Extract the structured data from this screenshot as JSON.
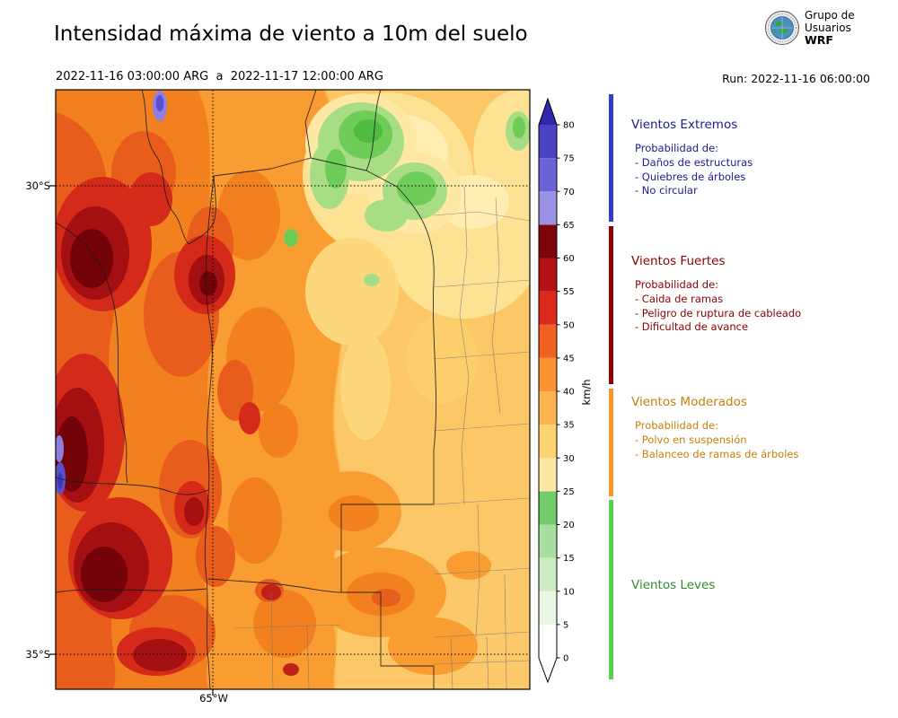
{
  "header": {
    "title": "Intensidad máxima de viento a 10m del suelo",
    "period": "2022-11-16 03:00:00 ARG  a  2022-11-17 12:00:00 ARG",
    "run_label": "Run: 2022-11-16 06:00:00",
    "logo": {
      "line1": "Grupo de",
      "line2": "Usuarios",
      "line3": "WRF"
    }
  },
  "map": {
    "lat_labels": [
      "30°S",
      "35°S"
    ],
    "lon_label": "65°W"
  },
  "colorbar": {
    "unit": "km/h",
    "min": 0,
    "max": 80,
    "ticks": [
      0,
      5,
      10,
      15,
      20,
      25,
      30,
      35,
      40,
      45,
      50,
      55,
      60,
      65,
      70,
      75,
      80
    ],
    "segments": [
      {
        "from": 0,
        "to": 5,
        "color": "#ffffff"
      },
      {
        "from": 5,
        "to": 10,
        "color": "#e9f7e4"
      },
      {
        "from": 10,
        "to": 15,
        "color": "#cdecc3"
      },
      {
        "from": 15,
        "to": 20,
        "color": "#a8dfa0"
      },
      {
        "from": 20,
        "to": 25,
        "color": "#73cc6b"
      },
      {
        "from": 25,
        "to": 30,
        "color": "#ffe8a3"
      },
      {
        "from": 30,
        "to": 35,
        "color": "#fed473"
      },
      {
        "from": 35,
        "to": 40,
        "color": "#fdb44e"
      },
      {
        "from": 40,
        "to": 45,
        "color": "#fb9330"
      },
      {
        "from": 45,
        "to": 50,
        "color": "#f26122"
      },
      {
        "from": 50,
        "to": 55,
        "color": "#dc2a1d"
      },
      {
        "from": 55,
        "to": 60,
        "color": "#b41217"
      },
      {
        "from": 60,
        "to": 65,
        "color": "#7e040c"
      },
      {
        "from": 65,
        "to": 70,
        "color": "#9b92e6"
      },
      {
        "from": 70,
        "to": 75,
        "color": "#6a63d8"
      },
      {
        "from": 75,
        "to": 80,
        "color": "#4a43c4"
      }
    ],
    "over_color": "#2d27ae",
    "under_color": "#ffffff"
  },
  "legend": {
    "categories": [
      {
        "name": "Vientos Extremos",
        "text_color": "#1b1b8f",
        "bar_color": "#3539cf",
        "prob_title": "Probabilidad de:",
        "items": [
          "- Daños de estructuras",
          "- Quiebres de árboles",
          "- No circular"
        ]
      },
      {
        "name": "Vientos Fuertes",
        "text_color": "#8b0000",
        "bar_color": "#8b0000",
        "prob_title": "Probabilidad de:",
        "items": [
          "- Caida de ramas",
          "- Peligro de ruptura de cableado",
          "- Dificultad de avance"
        ]
      },
      {
        "name": "Vientos Moderados",
        "text_color": "#c8800a",
        "bar_color": "#fc9727",
        "prob_title": "Probabilidad de:",
        "items": [
          "- Polvo en suspensión",
          "- Balanceo de ramas de árboles"
        ]
      },
      {
        "name": "Vientos Leves",
        "text_color": "#2e8b2e",
        "bar_color": "#55d055",
        "prob_title": "",
        "items": []
      }
    ]
  },
  "chart_data": {
    "type": "heatmap",
    "title": "Intensidad máxima de viento a 10m del suelo",
    "period": {
      "start": "2022-11-16 03:00:00 ARG",
      "end": "2022-11-17 12:00:00 ARG"
    },
    "model_run": "2022-11-16 06:00:00",
    "unit": "km/h",
    "scale": {
      "min": 0,
      "max": 80,
      "interval": 5,
      "over_arrow": true,
      "under_arrow": true
    },
    "axes": {
      "lat_ticks": [
        "30°S",
        "35°S"
      ],
      "lon_ticks": [
        "65°W"
      ]
    },
    "categories": [
      {
        "label": "Vientos Leves",
        "approx_range_kmh": [
          0,
          25
        ]
      },
      {
        "label": "Vientos Moderados",
        "approx_range_kmh": [
          25,
          45
        ]
      },
      {
        "label": "Vientos Fuertes",
        "approx_range_kmh": [
          45,
          65
        ]
      },
      {
        "label": "Vientos Extremos",
        "approx_range_kmh": [
          65,
          80
        ]
      }
    ]
  }
}
